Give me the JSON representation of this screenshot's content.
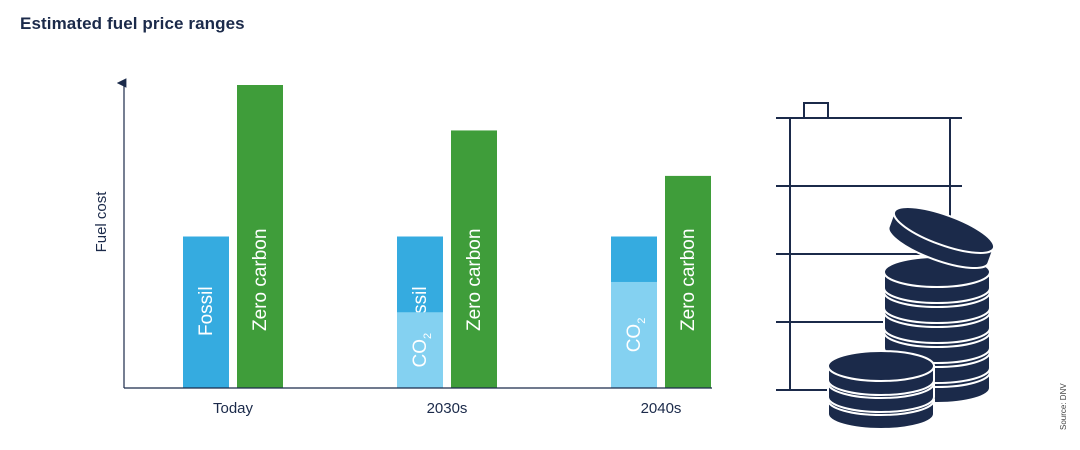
{
  "chart_data": {
    "type": "bar",
    "title": "Estimated fuel price ranges",
    "ylabel": "Fuel cost",
    "xlabel": "",
    "ylim": [
      0,
      100
    ],
    "y_ticks_shown": false,
    "categories": [
      "Today",
      "2030s",
      "2040s"
    ],
    "groups": [
      {
        "category": "Today",
        "bars": [
          {
            "label": "Fossil",
            "segments": [
              {
                "name": "Fossil",
                "value": 50,
                "color": "#35abe0"
              }
            ]
          },
          {
            "label": "Zero carbon",
            "segments": [
              {
                "name": "Zero carbon",
                "value": 100,
                "color": "#3f9d3a"
              }
            ]
          }
        ]
      },
      {
        "category": "2030s",
        "bars": [
          {
            "label": "Fossil",
            "segments": [
              {
                "name": "Fossil",
                "value": 50,
                "color": "#35abe0"
              },
              {
                "name": "CO2",
                "value": 25,
                "color": "#84d1f1"
              }
            ]
          },
          {
            "label": "Zero carbon",
            "segments": [
              {
                "name": "Zero carbon",
                "value": 85,
                "color": "#3f9d3a"
              }
            ]
          }
        ]
      },
      {
        "category": "2040s",
        "bars": [
          {
            "label": "Fossil",
            "segments": [
              {
                "name": "Fossil",
                "value": 50,
                "color": "#35abe0"
              },
              {
                "name": "CO2",
                "value": 35,
                "color": "#84d1f1"
              }
            ]
          },
          {
            "label": "Zero carbon",
            "segments": [
              {
                "name": "Zero carbon",
                "value": 70,
                "color": "#3f9d3a"
              }
            ]
          }
        ]
      }
    ]
  },
  "labels": {
    "co2_main": "CO",
    "co2_sub": "2"
  },
  "source": "Source: DNV",
  "colors": {
    "fossil": "#35abe0",
    "co2": "#84d1f1",
    "zero_carbon": "#3f9d3a",
    "navy": "#1b2a4a"
  },
  "illustration": {
    "icon": "fuel-barrel-with-coins-icon"
  }
}
